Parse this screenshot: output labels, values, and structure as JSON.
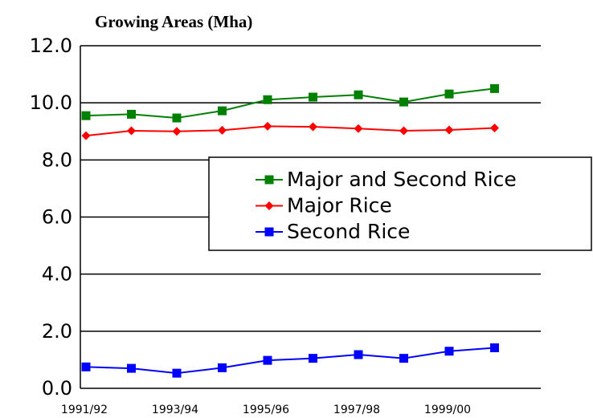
{
  "chart_data": {
    "type": "line",
    "title": "Growing  Areas (Mha)",
    "categories": [
      "1991/92",
      null,
      "1993/94",
      null,
      "1995/96",
      null,
      "1997/98",
      null,
      "1999/00",
      null
    ],
    "series": [
      {
        "name": "Major and Second Rice",
        "color": "#008000",
        "marker": "square",
        "values": [
          9.55,
          9.6,
          9.47,
          9.72,
          10.11,
          10.2,
          10.28,
          10.03,
          10.31,
          10.5
        ]
      },
      {
        "name": "Major Rice",
        "color": "#ff0000",
        "marker": "diamond",
        "values": [
          8.85,
          9.02,
          9.0,
          9.04,
          9.18,
          9.16,
          9.1,
          9.02,
          9.05,
          9.12
        ]
      },
      {
        "name": "Second  Rice",
        "color": "#0000ff",
        "marker": "square",
        "values": [
          0.75,
          0.7,
          0.53,
          0.72,
          0.98,
          1.05,
          1.18,
          1.05,
          1.3,
          1.42
        ]
      }
    ],
    "ylim": [
      0,
      12
    ],
    "yticks": [
      {
        "value": 0,
        "label": "0.0"
      },
      {
        "value": 2,
        "label": "2.0"
      },
      {
        "value": 4,
        "label": "4.0"
      },
      {
        "value": 6,
        "label": "6.0"
      },
      {
        "value": 8,
        "label": "8.0"
      },
      {
        "value": 10,
        "label": "10.0"
      },
      {
        "value": 12,
        "label": "12.0"
      }
    ],
    "grid": true
  }
}
